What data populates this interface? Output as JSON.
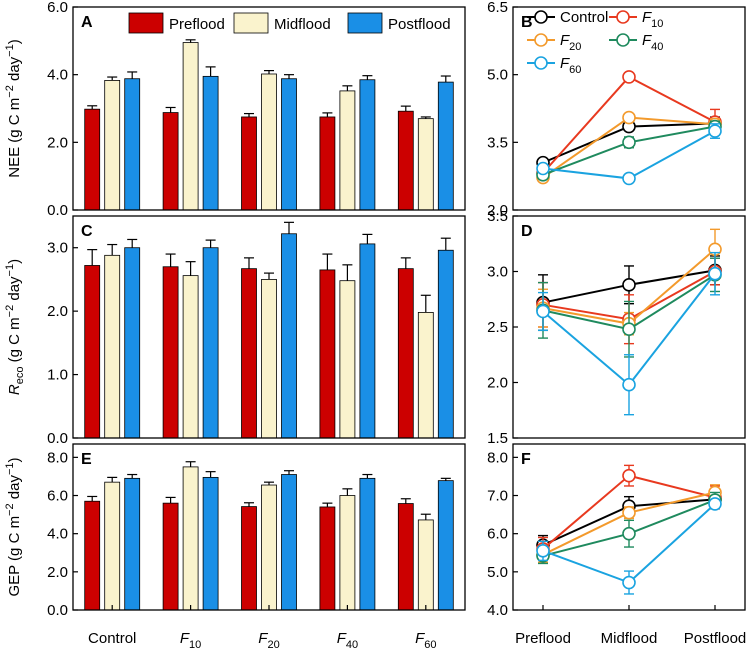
{
  "colors": {
    "preflood": "#cc0000",
    "midflood": "#faf3cd",
    "postflood": "#1a8fe6",
    "control": "#000000",
    "f10": "#e8391f",
    "f20": "#f39a2c",
    "f40": "#1f8a5e",
    "f60": "#1aa3e0"
  },
  "chart_data": [
    {
      "panel": "A",
      "type": "bar",
      "ylabel": "NEE (g C m−2 day−1)",
      "ylabel_parts": {
        "main": "NEE (g C m",
        "exp1": "−2",
        "mid": " day",
        "exp2": "−1",
        "end": ")"
      },
      "ylim": [
        0,
        6
      ],
      "yticks": [
        "0.0",
        "2.0",
        "4.0",
        "6.0"
      ],
      "categories": [
        "Control",
        "F10",
        "F20",
        "F40",
        "F60"
      ],
      "series": [
        {
          "name": "Preflood",
          "values": [
            2.98,
            2.88,
            2.75,
            2.75,
            2.92
          ],
          "errors": [
            0.1,
            0.15,
            0.1,
            0.12,
            0.15
          ]
        },
        {
          "name": "Midflood",
          "values": [
            3.83,
            4.95,
            4.02,
            3.52,
            2.7
          ],
          "errors": [
            0.1,
            0.08,
            0.1,
            0.15,
            0.05
          ]
        },
        {
          "name": "Postflood",
          "values": [
            3.88,
            3.95,
            3.88,
            3.85,
            3.78
          ],
          "errors": [
            0.2,
            0.28,
            0.12,
            0.12,
            0.18
          ]
        }
      ]
    },
    {
      "panel": "B",
      "type": "line",
      "ylim": [
        2,
        6.5
      ],
      "yticks": [
        "2.0",
        "3.5",
        "5.0",
        "6.5"
      ],
      "x": [
        "Preflood",
        "Midflood",
        "Postflood"
      ],
      "series": [
        {
          "name": "Control",
          "values": [
            3.05,
            3.85,
            3.92
          ],
          "errors": [
            0.06,
            0.08,
            0.14
          ]
        },
        {
          "name": "F10",
          "values": [
            2.82,
            4.95,
            3.95
          ],
          "errors": [
            0.08,
            0.08,
            0.28
          ]
        },
        {
          "name": "F20",
          "values": [
            2.72,
            4.05,
            3.9
          ],
          "errors": [
            0.06,
            0.08,
            0.12
          ]
        },
        {
          "name": "F40",
          "values": [
            2.78,
            3.5,
            3.85
          ],
          "errors": [
            0.06,
            0.12,
            0.12
          ]
        },
        {
          "name": "F60",
          "values": [
            2.92,
            2.7,
            3.75
          ],
          "errors": [
            0.06,
            0.05,
            0.16
          ]
        }
      ]
    },
    {
      "panel": "C",
      "type": "bar",
      "ylabel_parts": {
        "main": "R",
        "sub": "eco",
        "mid": " (g C m",
        "exp1": "−2",
        "mid2": " day",
        "exp2": "−1",
        "end": ")"
      },
      "ylim": [
        0,
        3.5
      ],
      "yticks": [
        "0.0",
        "1.0",
        "2.0",
        "3.0"
      ],
      "categories": [
        "Control",
        "F10",
        "F20",
        "F40",
        "F60"
      ],
      "series": [
        {
          "name": "Preflood",
          "values": [
            2.72,
            2.7,
            2.67,
            2.65,
            2.67
          ],
          "errors": [
            0.25,
            0.2,
            0.17,
            0.25,
            0.17
          ]
        },
        {
          "name": "Midflood",
          "values": [
            2.88,
            2.56,
            2.5,
            2.48,
            1.98
          ],
          "errors": [
            0.17,
            0.22,
            0.1,
            0.25,
            0.27
          ]
        },
        {
          "name": "Postflood",
          "values": [
            3.0,
            3.0,
            3.22,
            3.06,
            2.96
          ],
          "errors": [
            0.13,
            0.12,
            0.18,
            0.15,
            0.19
          ]
        }
      ]
    },
    {
      "panel": "D",
      "type": "line",
      "ylim": [
        1.5,
        3.5
      ],
      "yticks": [
        "1.5",
        "2.0",
        "2.5",
        "3.0",
        "3.5"
      ],
      "x": [
        "Preflood",
        "Midflood",
        "Postflood"
      ],
      "series": [
        {
          "name": "Control",
          "values": [
            2.72,
            2.88,
            3.01
          ],
          "errors": [
            0.25,
            0.17,
            0.13
          ]
        },
        {
          "name": "F10",
          "values": [
            2.7,
            2.57,
            3.0
          ],
          "errors": [
            0.2,
            0.22,
            0.12
          ]
        },
        {
          "name": "F20",
          "values": [
            2.67,
            2.53,
            3.2
          ],
          "errors": [
            0.17,
            0.1,
            0.18
          ]
        },
        {
          "name": "F40",
          "values": [
            2.65,
            2.48,
            2.97
          ],
          "errors": [
            0.25,
            0.25,
            0.15
          ]
        },
        {
          "name": "F60",
          "values": [
            2.64,
            1.98,
            2.98
          ],
          "errors": [
            0.17,
            0.27,
            0.19
          ]
        }
      ]
    },
    {
      "panel": "E",
      "type": "bar",
      "ylabel_parts": {
        "main": "GEP (g C m",
        "exp1": "−2",
        "mid": " day",
        "exp2": "−1",
        "end": ")"
      },
      "ylim": [
        0,
        8.7
      ],
      "yticks": [
        "0.0",
        "2.0",
        "4.0",
        "6.0",
        "8.0"
      ],
      "categories": [
        "Control",
        "F10",
        "F20",
        "F40",
        "F60"
      ],
      "series": [
        {
          "name": "Preflood",
          "values": [
            5.7,
            5.6,
            5.42,
            5.4,
            5.58
          ],
          "errors": [
            0.25,
            0.3,
            0.2,
            0.2,
            0.25
          ]
        },
        {
          "name": "Midflood",
          "values": [
            6.7,
            7.5,
            6.55,
            6.0,
            4.72
          ],
          "errors": [
            0.25,
            0.27,
            0.15,
            0.35,
            0.3
          ]
        },
        {
          "name": "Postflood",
          "values": [
            6.9,
            6.95,
            7.1,
            6.9,
            6.78
          ],
          "errors": [
            0.2,
            0.3,
            0.2,
            0.2,
            0.12
          ]
        }
      ]
    },
    {
      "panel": "F",
      "type": "line",
      "ylim": [
        4,
        8.35
      ],
      "yticks": [
        "4.0",
        "5.0",
        "6.0",
        "7.0",
        "8.0"
      ],
      "x": [
        "Preflood",
        "Midflood",
        "Postflood"
      ],
      "series": [
        {
          "name": "Control",
          "values": [
            5.7,
            6.72,
            6.9
          ],
          "errors": [
            0.25,
            0.25,
            0.2
          ]
        },
        {
          "name": "F10",
          "values": [
            5.6,
            7.52,
            6.95
          ],
          "errors": [
            0.3,
            0.27,
            0.3
          ]
        },
        {
          "name": "F20",
          "values": [
            5.45,
            6.55,
            7.08
          ],
          "errors": [
            0.2,
            0.15,
            0.2
          ]
        },
        {
          "name": "F40",
          "values": [
            5.42,
            6.0,
            6.88
          ],
          "errors": [
            0.2,
            0.35,
            0.2
          ]
        },
        {
          "name": "F60",
          "values": [
            5.55,
            4.72,
            6.78
          ],
          "errors": [
            0.25,
            0.3,
            0.12
          ]
        }
      ]
    }
  ],
  "legend_bar": [
    "Preflood",
    "Midflood",
    "Postflood"
  ],
  "legend_line": [
    {
      "name": "Control",
      "base": "Control",
      "sub": ""
    },
    {
      "name": "F10",
      "base": "F",
      "sub": "10"
    },
    {
      "name": "F20",
      "base": "F",
      "sub": "20"
    },
    {
      "name": "F40",
      "base": "F",
      "sub": "40"
    },
    {
      "name": "F60",
      "base": "F",
      "sub": "60"
    }
  ],
  "x_bar_labels": [
    {
      "base": "Control",
      "sub": ""
    },
    {
      "base": "F",
      "sub": "10"
    },
    {
      "base": "F",
      "sub": "20"
    },
    {
      "base": "F",
      "sub": "40"
    },
    {
      "base": "F",
      "sub": "60"
    }
  ]
}
